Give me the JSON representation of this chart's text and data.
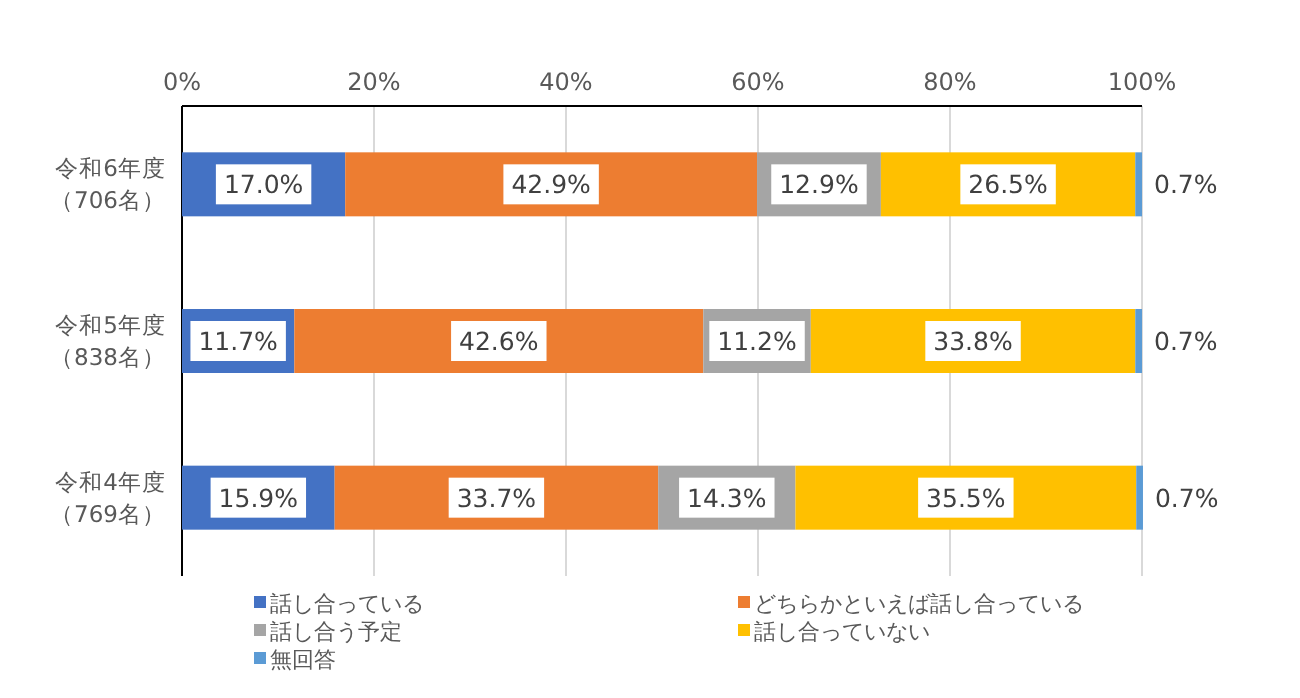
{
  "chart_data": {
    "type": "bar",
    "orientation": "horizontal",
    "stacked": true,
    "categories": [
      "令和6年度（706名）",
      "令和5年度（838名）",
      "令和4年度（769名）"
    ],
    "series": [
      {
        "name": "話し合っている",
        "color": "#4472c4",
        "values": [
          17.0,
          11.7,
          15.9
        ],
        "value_labels": [
          "17.0%",
          "11.7%",
          "15.9%"
        ]
      },
      {
        "name": "どちらかといえば話し合っている",
        "color": "#ed7d31",
        "values": [
          42.9,
          42.6,
          33.7
        ],
        "value_labels": [
          "42.9%",
          "42.6%",
          "33.7%"
        ]
      },
      {
        "name": "話し合う予定",
        "color": "#a5a5a5",
        "values": [
          12.9,
          11.2,
          14.3
        ],
        "value_labels": [
          "12.9%",
          "11.2%",
          "14.3%"
        ]
      },
      {
        "name": "話し合っていない",
        "color": "#ffc000",
        "values": [
          26.5,
          33.8,
          35.5
        ],
        "value_labels": [
          "26.5%",
          "33.8%",
          "35.5%"
        ]
      },
      {
        "name": "無回答",
        "color": "#5b9bd5",
        "values": [
          0.7,
          0.7,
          0.7
        ],
        "value_labels": [
          "0.7%",
          "0.7%",
          "0.7%"
        ]
      }
    ],
    "xlim": [
      0,
      100
    ],
    "xticks": [
      {
        "value": 0,
        "label": "0%"
      },
      {
        "value": 20,
        "label": "20%"
      },
      {
        "value": 40,
        "label": "40%"
      },
      {
        "value": 60,
        "label": "60%"
      },
      {
        "value": 80,
        "label": "80%"
      },
      {
        "value": 100,
        "label": "100%"
      }
    ],
    "grid": "x",
    "legend": "bottom"
  }
}
